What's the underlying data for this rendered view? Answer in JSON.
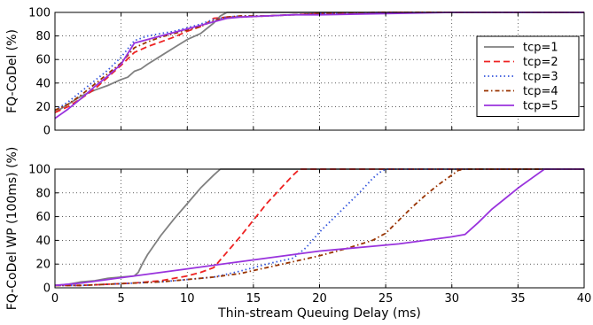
{
  "chart_data": [
    {
      "type": "line",
      "ylabel": "FQ-CoDel (%)",
      "xlabel": "",
      "xlim": [
        0,
        40
      ],
      "ylim": [
        0,
        100
      ],
      "xticks": [
        "0",
        "5",
        "10",
        "15",
        "20",
        "25",
        "30",
        "35",
        "40"
      ],
      "yticks": [
        "0",
        "20",
        "40",
        "60",
        "80",
        "100"
      ],
      "show_xtick_labels": false,
      "grid": true,
      "legend": "right",
      "series": [
        {
          "name": "tcp=1",
          "color": "#808080",
          "style": "solid",
          "x": [
            0,
            1,
            2,
            3,
            4,
            5,
            5.5,
            6,
            6.5,
            7,
            8,
            9,
            10,
            11,
            12,
            12.5,
            13,
            14,
            16,
            20,
            25,
            30,
            40
          ],
          "y": [
            15,
            22,
            29,
            34,
            38,
            43,
            45,
            50,
            52,
            56,
            63,
            70,
            77,
            82,
            91,
            97,
            100,
            100,
            100,
            100,
            100,
            100,
            100
          ]
        },
        {
          "name": "tcp=2",
          "color": "#ee2222",
          "style": "dashed",
          "x": [
            0,
            1,
            2,
            3,
            4,
            5,
            6,
            7,
            8,
            9,
            10,
            11,
            11.5,
            12,
            13,
            14,
            16,
            18,
            20,
            25,
            30,
            40
          ],
          "y": [
            15,
            20,
            27,
            35,
            45,
            55,
            66,
            71,
            75,
            79,
            84,
            88,
            91,
            95,
            96,
            96,
            97,
            98,
            99,
            100,
            100,
            100
          ]
        },
        {
          "name": "tcp=3",
          "color": "#3355dd",
          "style": "dotted",
          "x": [
            0,
            1,
            2,
            3,
            4,
            5,
            6,
            7,
            8,
            9,
            10,
            11,
            12,
            13,
            14,
            16,
            18,
            20,
            25,
            30,
            40
          ],
          "y": [
            17,
            24,
            33,
            42,
            51,
            62,
            76,
            80,
            82,
            84,
            87,
            90,
            94,
            96,
            97,
            97,
            98,
            99,
            100,
            100,
            100
          ]
        },
        {
          "name": "tcp=4",
          "color": "#993300",
          "style": "dashdot",
          "x": [
            0,
            1,
            2,
            3,
            4,
            5,
            6,
            7,
            8,
            9,
            10,
            11,
            12,
            13,
            14,
            16,
            18,
            20,
            25,
            30,
            40
          ],
          "y": [
            17,
            22,
            30,
            39,
            48,
            57,
            70,
            75,
            79,
            82,
            85,
            88,
            93,
            96,
            97,
            97,
            98,
            99,
            100,
            100,
            100
          ]
        },
        {
          "name": "tcp=5",
          "color": "#9933dd",
          "style": "solid",
          "x": [
            0,
            1,
            2,
            3,
            4,
            5,
            6,
            7,
            8,
            9,
            10,
            11,
            12,
            13,
            14,
            16,
            18,
            20,
            25,
            30,
            40
          ],
          "y": [
            10,
            18,
            27,
            37,
            46,
            56,
            74,
            77,
            80,
            83,
            86,
            89,
            92,
            95,
            96,
            97,
            98,
            98,
            99,
            100,
            100
          ]
        }
      ]
    },
    {
      "type": "line",
      "ylabel": "FQ-CoDel WP (100ms) (%)",
      "xlabel": "Thin-stream Queuing Delay (ms)",
      "xlim": [
        0,
        40
      ],
      "ylim": [
        0,
        100
      ],
      "xticks": [
        "0",
        "5",
        "10",
        "15",
        "20",
        "25",
        "30",
        "35",
        "40"
      ],
      "yticks": [
        "0",
        "20",
        "40",
        "60",
        "80",
        "100"
      ],
      "show_xtick_labels": true,
      "grid": true,
      "series": [
        {
          "name": "tcp=1",
          "color": "#808080",
          "style": "solid",
          "x": [
            0,
            1,
            2,
            3,
            4,
            5,
            6,
            6.3,
            6.6,
            7,
            8,
            9,
            10,
            11,
            12,
            12.5,
            13,
            20,
            40
          ],
          "y": [
            2,
            3,
            5,
            6,
            8,
            9,
            10,
            13,
            20,
            28,
            44,
            58,
            71,
            84,
            95,
            100,
            100,
            100,
            100
          ]
        },
        {
          "name": "tcp=2",
          "color": "#ee2222",
          "style": "dashed",
          "x": [
            0,
            2,
            4,
            6,
            8,
            10,
            11,
            12,
            13,
            14,
            15,
            16,
            17,
            18,
            18.5,
            19,
            25,
            40
          ],
          "y": [
            2,
            2,
            3,
            4,
            6,
            10,
            13,
            17,
            30,
            43,
            57,
            71,
            83,
            95,
            100,
            100,
            100,
            100
          ]
        },
        {
          "name": "tcp=3",
          "color": "#3355dd",
          "style": "dotted",
          "x": [
            0,
            2,
            4,
            6,
            8,
            10,
            12,
            14,
            16,
            18,
            19,
            20,
            21,
            22,
            23,
            24,
            24.5,
            25,
            30,
            40
          ],
          "y": [
            2,
            2,
            3,
            4,
            5,
            7,
            9,
            14,
            20,
            25,
            34,
            47,
            58,
            69,
            80,
            92,
            97,
            100,
            100,
            100
          ]
        },
        {
          "name": "tcp=4",
          "color": "#993300",
          "style": "dashdot",
          "x": [
            0,
            2,
            4,
            6,
            8,
            10,
            12,
            14,
            16,
            18,
            20,
            22,
            24,
            25,
            26,
            27,
            28,
            29,
            30,
            30.5,
            31,
            40
          ],
          "y": [
            2,
            2,
            3,
            4,
            5,
            7,
            9,
            12,
            17,
            22,
            27,
            33,
            40,
            46,
            57,
            68,
            78,
            87,
            95,
            99,
            100,
            100
          ]
        },
        {
          "name": "tcp=5",
          "color": "#9933dd",
          "style": "solid",
          "x": [
            0,
            2,
            4,
            6,
            8,
            10,
            12,
            14,
            16,
            18,
            20,
            22,
            24,
            26,
            28,
            30,
            31,
            32,
            33,
            34,
            35,
            36,
            37,
            40
          ],
          "y": [
            2,
            4,
            7,
            10,
            13,
            16,
            19,
            22,
            25,
            28,
            31,
            33,
            35,
            37,
            40,
            43,
            45,
            55,
            66,
            75,
            84,
            92,
            100,
            100
          ]
        }
      ]
    }
  ]
}
